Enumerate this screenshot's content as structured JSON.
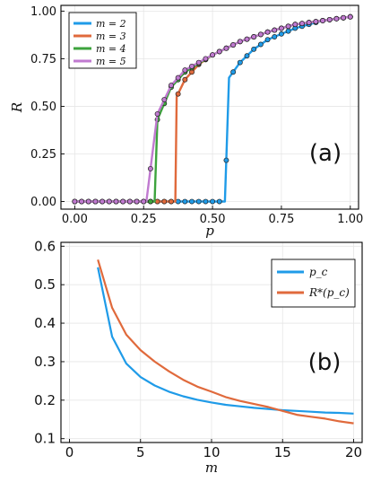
{
  "chart_data": [
    {
      "panel": "(a)",
      "type": "line",
      "xlabel": "p",
      "ylabel": "R",
      "xlim": [
        -0.05,
        1.03
      ],
      "ylim": [
        -0.04,
        1.03
      ],
      "xticks": [
        "0.00",
        "0.25",
        "0.50",
        "0.75",
        "1.00"
      ],
      "yticks": [
        "0.00",
        "0.25",
        "0.50",
        "0.75",
        "1.00"
      ],
      "legend": "top-left",
      "series": [
        {
          "name": "m = 2",
          "color": "#1f9be8",
          "pc": 0.545,
          "x": [
            0.0,
            0.54,
            0.545,
            0.56,
            0.6,
            0.65,
            0.7,
            0.75,
            0.8,
            0.85,
            0.9,
            0.95,
            1.0
          ],
          "y": [
            0.0,
            0.0,
            0.0,
            0.65,
            0.73,
            0.8,
            0.85,
            0.88,
            0.91,
            0.93,
            0.95,
            0.96,
            0.97
          ]
        },
        {
          "name": "m = 3",
          "color": "#e06a3c",
          "pc": 0.365,
          "x": [
            0.0,
            0.36,
            0.365,
            0.37,
            0.4,
            0.45,
            0.5,
            0.6,
            0.7,
            0.8,
            0.9,
            1.0
          ],
          "y": [
            0.0,
            0.0,
            0.0,
            0.55,
            0.64,
            0.72,
            0.77,
            0.84,
            0.89,
            0.93,
            0.95,
            0.97
          ]
        },
        {
          "name": "m = 4",
          "color": "#3da33d",
          "pc": 0.29,
          "x": [
            0.0,
            0.285,
            0.29,
            0.3,
            0.35,
            0.4,
            0.5,
            0.6,
            0.7,
            0.8,
            0.9,
            1.0
          ],
          "y": [
            0.0,
            0.0,
            0.0,
            0.43,
            0.6,
            0.68,
            0.77,
            0.84,
            0.89,
            0.93,
            0.95,
            0.97
          ]
        },
        {
          "name": "m = 5",
          "color": "#c07ad0",
          "pc": 0.26,
          "x": [
            0.0,
            0.255,
            0.26,
            0.3,
            0.35,
            0.4,
            0.5,
            0.6,
            0.7,
            0.8,
            0.9,
            1.0
          ],
          "y": [
            0.0,
            0.0,
            0.0,
            0.46,
            0.61,
            0.69,
            0.77,
            0.84,
            0.89,
            0.93,
            0.95,
            0.97
          ]
        }
      ]
    },
    {
      "panel": "(b)",
      "type": "line",
      "xlabel": "m",
      "ylabel": "",
      "xlim": [
        -0.6,
        20.6
      ],
      "ylim": [
        0.09,
        0.61
      ],
      "xticks": [
        "0",
        "5",
        "10",
        "15",
        "20"
      ],
      "yticks": [
        "0.1",
        "0.2",
        "0.3",
        "0.4",
        "0.5",
        "0.6"
      ],
      "legend": "top-right",
      "x": [
        2,
        3,
        4,
        5,
        6,
        7,
        8,
        9,
        10,
        11,
        12,
        13,
        14,
        15,
        16,
        17,
        18,
        19,
        20
      ],
      "series": [
        {
          "name": "p_c",
          "color": "#1f9be8",
          "values": [
            0.545,
            0.365,
            0.295,
            0.26,
            0.238,
            0.222,
            0.21,
            0.201,
            0.194,
            0.188,
            0.184,
            0.18,
            0.177,
            0.174,
            0.172,
            0.17,
            0.168,
            0.167,
            0.165
          ]
        },
        {
          "name": "R*(p_c)",
          "color": "#e06a3c",
          "values": [
            0.565,
            0.44,
            0.37,
            0.33,
            0.3,
            0.275,
            0.253,
            0.235,
            0.222,
            0.208,
            0.198,
            0.19,
            0.182,
            0.172,
            0.162,
            0.157,
            0.152,
            0.145,
            0.14
          ]
        }
      ]
    }
  ]
}
